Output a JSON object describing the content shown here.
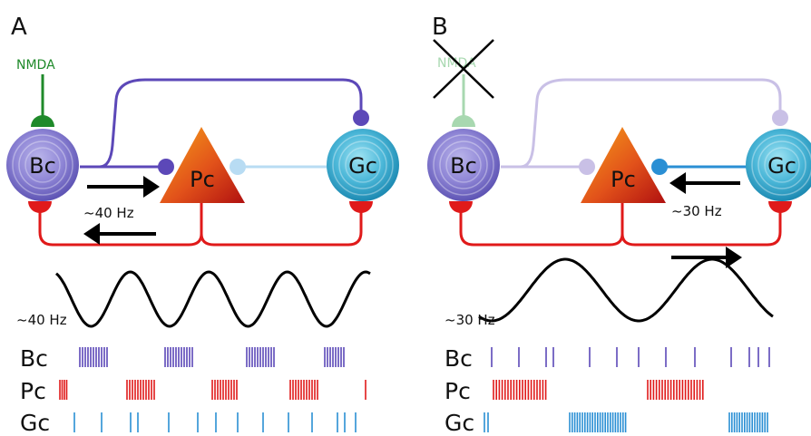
{
  "colors": {
    "bc_line": "#5c48b8",
    "bc_faded": "#c9c0e6",
    "gc_line": "#2a8fd4",
    "gc_faded": "#b8dcf3",
    "pc_line": "#e01a1a",
    "nmda": "#1f8a2a",
    "nmda_faded": "#a8d8b0",
    "black": "#000000"
  },
  "panels": [
    {
      "letter": "A",
      "nmda_label": "NMDA",
      "nmda_blocked": false,
      "cells": {
        "bc": "Bc",
        "pc": "Pc",
        "gc": "Gc"
      },
      "loop_freq": "~40 Hz",
      "wave_freq": "~40 Hz",
      "wave_cycles": 4,
      "raster_labels": [
        "Bc",
        "Pc",
        "Gc"
      ]
    },
    {
      "letter": "B",
      "nmda_label": "NMDA",
      "nmda_blocked": true,
      "cells": {
        "bc": "Bc",
        "pc": "Pc",
        "gc": "Gc"
      },
      "loop_freq": "~30 Hz",
      "wave_freq": "~30 Hz",
      "wave_cycles": 2,
      "raster_labels": [
        "Bc",
        "Pc",
        "Gc"
      ]
    }
  ]
}
